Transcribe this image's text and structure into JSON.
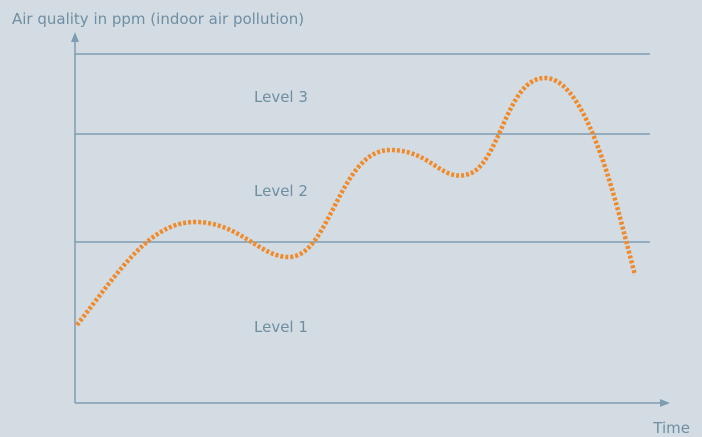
{
  "diagram": {
    "y_axis_label": "Air quality in ppm (indoor air pollution)",
    "x_axis_label": "Time",
    "levels": [
      "Level 3",
      "Level 2",
      "Level 1"
    ]
  }
}
